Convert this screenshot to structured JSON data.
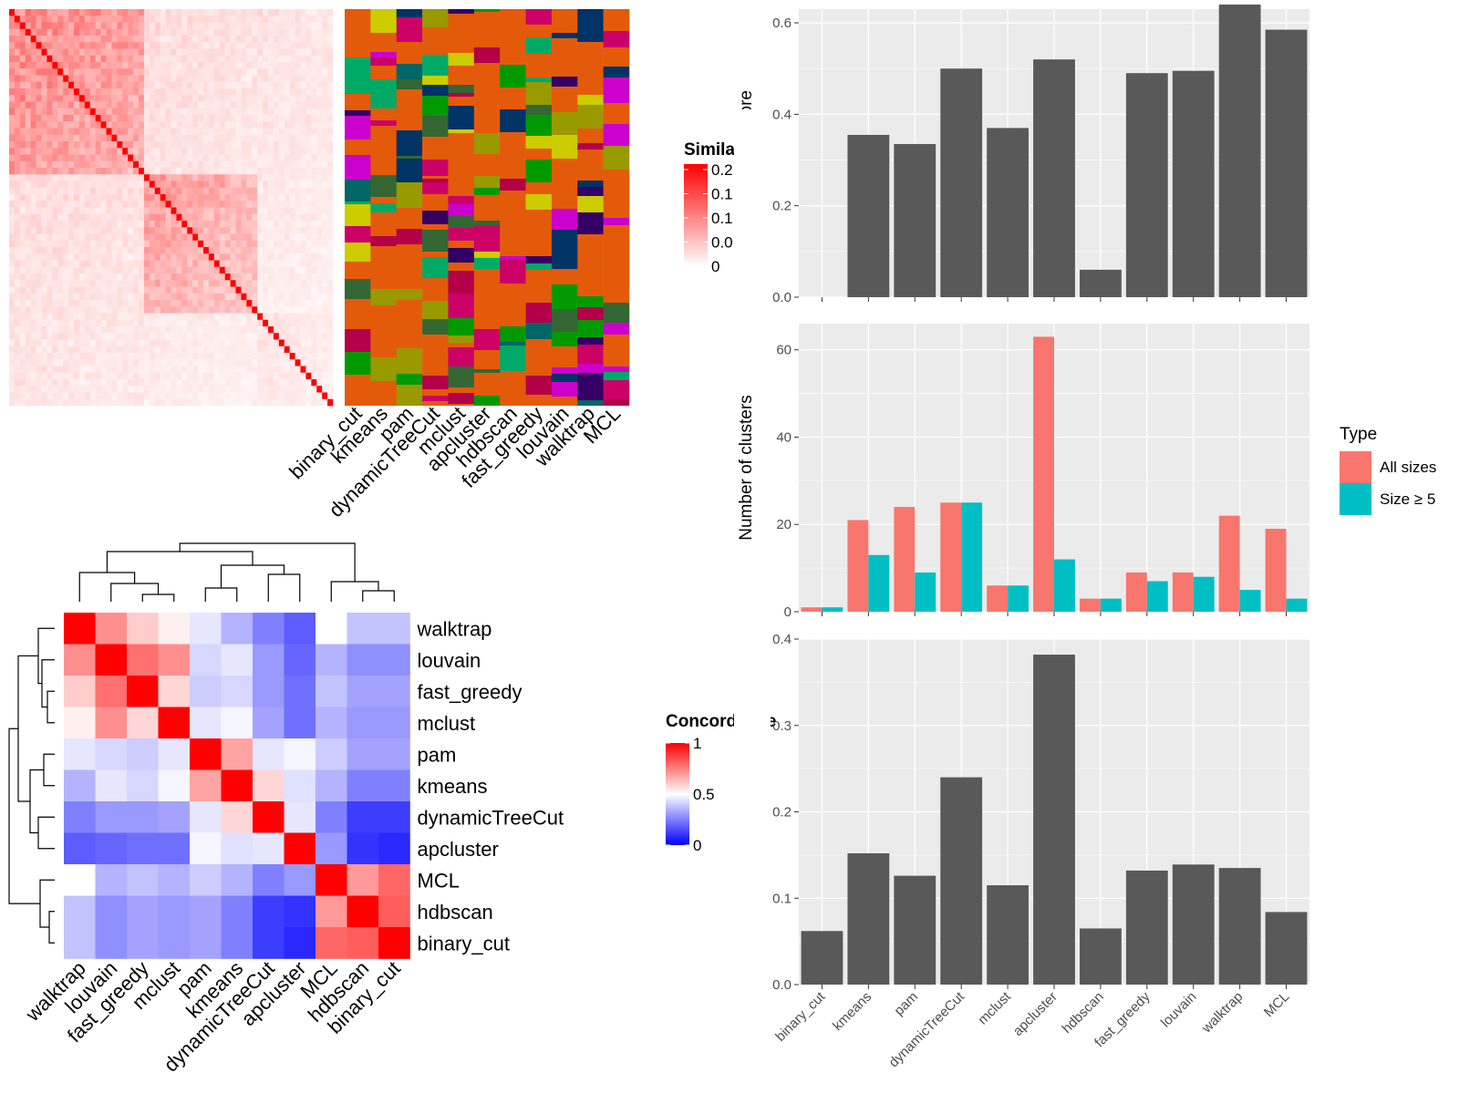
{
  "colors": {
    "panel_bg": "#ebebeb",
    "grid": "#ffffff",
    "bar": "#595959",
    "all_sizes": "#f8766d",
    "size_ge_5": "#00bfc4",
    "heat_red": "#ff0000",
    "heat_blue": "#0000ff"
  },
  "similarity_legend": {
    "title": "Similarity",
    "ticks": [
      "0.2",
      "0.1",
      "0.1",
      "0.0",
      "0"
    ]
  },
  "concordance_legend": {
    "title": "Concordance",
    "ticks": [
      "1",
      "0.5",
      "0"
    ]
  },
  "methods_order": [
    "binary_cut",
    "kmeans",
    "pam",
    "dynamicTreeCut",
    "mclust",
    "apcluster",
    "hdbscan",
    "fast_greedy",
    "louvain",
    "walktrap",
    "MCL"
  ],
  "concordance_order": [
    "walktrap",
    "louvain",
    "fast_greedy",
    "mclust",
    "pam",
    "kmeans",
    "dynamicTreeCut",
    "apcluster",
    "MCL",
    "hdbscan",
    "binary_cut"
  ],
  "chart_data": [
    {
      "type": "heatmap",
      "name": "similarity",
      "legend_title": "Similarity",
      "legend_ticks": [
        "0.2",
        "0.1",
        "0.1",
        "0.0",
        "0"
      ]
    },
    {
      "type": "heatmap",
      "name": "cluster-labels",
      "columns": [
        "binary_cut",
        "kmeans",
        "pam",
        "dynamicTreeCut",
        "mclust",
        "apcluster",
        "hdbscan",
        "fast_greedy",
        "louvain",
        "walktrap",
        "MCL"
      ]
    },
    {
      "type": "heatmap",
      "name": "concordance",
      "rows": [
        "walktrap",
        "louvain",
        "fast_greedy",
        "mclust",
        "pam",
        "kmeans",
        "dynamicTreeCut",
        "apcluster",
        "MCL",
        "hdbscan",
        "binary_cut"
      ],
      "columns": [
        "walktrap",
        "louvain",
        "fast_greedy",
        "mclust",
        "pam",
        "kmeans",
        "dynamicTreeCut",
        "apcluster",
        "MCL",
        "hdbscan",
        "binary_cut"
      ],
      "values": [
        [
          1.0,
          0.72,
          0.6,
          0.53,
          0.45,
          0.35,
          0.25,
          0.18,
          0.5,
          0.38,
          0.38
        ],
        [
          0.72,
          1.0,
          0.78,
          0.72,
          0.42,
          0.45,
          0.3,
          0.2,
          0.35,
          0.28,
          0.28
        ],
        [
          0.6,
          0.78,
          1.0,
          0.58,
          0.4,
          0.42,
          0.3,
          0.22,
          0.38,
          0.32,
          0.32
        ],
        [
          0.53,
          0.72,
          0.58,
          1.0,
          0.45,
          0.48,
          0.32,
          0.22,
          0.35,
          0.3,
          0.3
        ],
        [
          0.45,
          0.42,
          0.4,
          0.45,
          1.0,
          0.68,
          0.45,
          0.48,
          0.4,
          0.32,
          0.32
        ],
        [
          0.35,
          0.45,
          0.42,
          0.48,
          0.68,
          1.0,
          0.58,
          0.44,
          0.35,
          0.25,
          0.25
        ],
        [
          0.25,
          0.3,
          0.3,
          0.32,
          0.45,
          0.58,
          1.0,
          0.45,
          0.25,
          0.12,
          0.12
        ],
        [
          0.18,
          0.2,
          0.22,
          0.22,
          0.48,
          0.44,
          0.45,
          1.0,
          0.3,
          0.1,
          0.08
        ],
        [
          0.5,
          0.35,
          0.38,
          0.35,
          0.4,
          0.35,
          0.25,
          0.3,
          1.0,
          0.7,
          0.8
        ],
        [
          0.38,
          0.28,
          0.32,
          0.3,
          0.32,
          0.25,
          0.12,
          0.1,
          0.7,
          1.0,
          0.82
        ],
        [
          0.38,
          0.28,
          0.32,
          0.3,
          0.32,
          0.25,
          0.12,
          0.08,
          0.8,
          0.82,
          1.0
        ]
      ],
      "legend_title": "Concordance",
      "legend_ticks": [
        "1",
        "0.5",
        "0"
      ],
      "range": [
        0,
        1
      ]
    },
    {
      "type": "bar",
      "name": "difference-score",
      "categories": [
        "binary_cut",
        "kmeans",
        "pam",
        "dynamicTreeCut",
        "mclust",
        "apcluster",
        "hdbscan",
        "fast_greedy",
        "louvain",
        "walktrap",
        "MCL"
      ],
      "values": [
        0.0,
        0.355,
        0.335,
        0.5,
        0.37,
        0.52,
        0.06,
        0.49,
        0.495,
        0.64,
        0.585
      ],
      "ylabel": "Difference score",
      "ylim": [
        0,
        0.63
      ],
      "yticks": [
        "0.0",
        "0.2",
        "0.4",
        "0.6"
      ],
      "ytick_values": [
        0,
        0.2,
        0.4,
        0.6
      ],
      "grid": true
    },
    {
      "type": "bar",
      "name": "number-of-clusters",
      "categories": [
        "binary_cut",
        "kmeans",
        "pam",
        "dynamicTreeCut",
        "mclust",
        "apcluster",
        "hdbscan",
        "fast_greedy",
        "louvain",
        "walktrap",
        "MCL"
      ],
      "series": [
        {
          "name": "All sizes",
          "values": [
            1,
            21,
            24,
            25,
            6,
            63,
            3,
            9,
            9,
            22,
            19
          ]
        },
        {
          "name": "Size ≥ 5",
          "values": [
            1,
            13,
            9,
            25,
            6,
            12,
            3,
            7,
            8,
            5,
            3
          ]
        }
      ],
      "ylabel": "Number of clusters",
      "ylim": [
        0,
        66
      ],
      "yticks": [
        "0",
        "20",
        "40",
        "60"
      ],
      "ytick_values": [
        0,
        20,
        40,
        60
      ],
      "legend_title": "Type",
      "legend_position": "right",
      "grid": true
    },
    {
      "type": "bar",
      "name": "block-mean",
      "categories": [
        "binary_cut",
        "kmeans",
        "pam",
        "dynamicTreeCut",
        "mclust",
        "apcluster",
        "hdbscan",
        "fast_greedy",
        "louvain",
        "walktrap",
        "MCL"
      ],
      "values": [
        0.062,
        0.152,
        0.126,
        0.24,
        0.115,
        0.382,
        0.065,
        0.132,
        0.139,
        0.135,
        0.084
      ],
      "ylabel": "Block mean",
      "ylim": [
        0,
        0.4
      ],
      "yticks": [
        "0.0",
        "0.1",
        "0.2",
        "0.3",
        "0.4"
      ],
      "ytick_values": [
        0,
        0.1,
        0.2,
        0.3,
        0.4
      ],
      "grid": true
    }
  ]
}
